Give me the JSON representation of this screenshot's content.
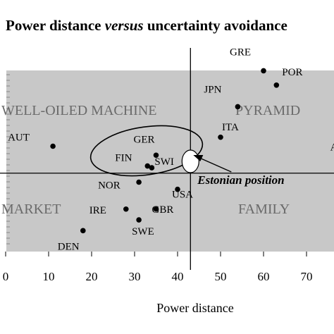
{
  "chart_data": {
    "type": "scatter",
    "title_parts": [
      "Power distance",
      "versus",
      "uncertainty avoidance"
    ],
    "xlabel": "Power distance",
    "ylabel": "",
    "xlim": [
      0,
      78
    ],
    "x_ticks": [
      0,
      10,
      20,
      30,
      40,
      50,
      60,
      70
    ],
    "grid": false,
    "quadrants": {
      "top_left": "WELL-OILED MACHINE",
      "top_right": "PYRAMID",
      "bottom_left": "MARKET",
      "bottom_right": "FAMILY"
    },
    "points": [
      {
        "label": "GRE",
        "x": 60,
        "y": 112
      },
      {
        "label": "POR",
        "x": 63,
        "y": 104
      },
      {
        "label": "JPN",
        "x": 54,
        "y": 92
      },
      {
        "label": "ITA",
        "x": 50,
        "y": 75
      },
      {
        "label": "AUT",
        "x": 11,
        "y": 70
      },
      {
        "label": "GER",
        "x": 35,
        "y": 65
      },
      {
        "label": "FIN",
        "x": 33,
        "y": 59
      },
      {
        "label": "SWI",
        "x": 34,
        "y": 58
      },
      {
        "label": "NOR",
        "x": 31,
        "y": 50
      },
      {
        "label": "USA",
        "x": 40,
        "y": 46
      },
      {
        "label": "IRE",
        "x": 28,
        "y": 35
      },
      {
        "label": "GBR",
        "x": 35,
        "y": 35
      },
      {
        "label": "SWE",
        "x": 31,
        "y": 29
      },
      {
        "label": "DEN",
        "x": 18,
        "y": 23
      },
      {
        "label": "AR",
        "x": 76,
        "y": 70
      }
    ],
    "reference_lines": {
      "x": 43,
      "y": 55
    },
    "annotation": {
      "label": "Estonian position",
      "x": 43,
      "y": 60
    }
  },
  "colors": {
    "plot_background": "#c8c8c8",
    "quadrant_text": "#6a6a6a",
    "ink": "#000000",
    "marker_fill": "#ffffff"
  }
}
